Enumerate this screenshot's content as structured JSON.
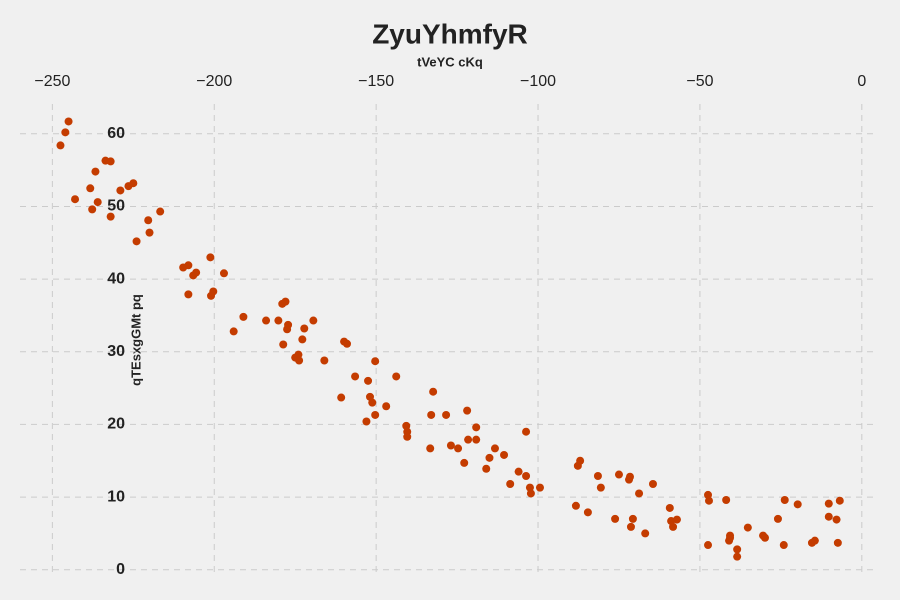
{
  "chart_data": {
    "type": "scatter",
    "title": "ZyuYhmfyR",
    "x_label": "tVeYC cKq",
    "y_label": "qTEsxgGMt pq",
    "color": "#c43c00",
    "grid": true,
    "xaxis_position": "top",
    "xlim": [
      -260,
      5
    ],
    "ylim": [
      -1,
      63
    ],
    "xticks": [
      {
        "value": -250,
        "label": "−250"
      },
      {
        "value": -200,
        "label": "−200"
      },
      {
        "value": -150,
        "label": "−150"
      },
      {
        "value": -100,
        "label": "−100"
      },
      {
        "value": -50,
        "label": "−50"
      },
      0
    ],
    "yticks": [
      0,
      10,
      20,
      30,
      40,
      50,
      60
    ],
    "x": [
      -247.5,
      -246,
      -245,
      -243,
      -238.3,
      -236.7,
      -237.7,
      -236,
      -233.6,
      -232,
      -232,
      -229,
      -226.5,
      -225,
      -224,
      -220.4,
      -220,
      -216.7,
      -209.6,
      -208,
      -208,
      -206.5,
      -205.6,
      -201.2,
      -201,
      -200.3,
      -197,
      -194,
      -191,
      -184,
      -180.2,
      -179,
      -178,
      -177.5,
      -177.2,
      -178.7,
      -175,
      -174,
      -173.8,
      -172.8,
      -172.2,
      -169.4,
      -166,
      -160.8,
      -159.9,
      -159,
      -156.5,
      -153,
      -152.5,
      -151.9,
      -151.2,
      -150.3,
      -150.3,
      -146.9,
      -143.8,
      -140.7,
      -140.4,
      -140.4,
      -133.3,
      -133,
      -132.4,
      -128.4,
      -126.9,
      -124.7,
      -122.8,
      -121.9,
      -121.6,
      -119.1,
      -119.1,
      -116,
      -115,
      -113.3,
      -110.5,
      -108.6,
      -106,
      -103.7,
      -103.7,
      -102.5,
      -102.2,
      -99.4,
      -88.3,
      -87.7,
      -87,
      -84.6,
      -81.5,
      -80.6,
      -76.2,
      -75,
      -71.9,
      -71.6,
      -71.3,
      -70.7,
      -68.8,
      -66.9,
      -64.5,
      -59.3,
      -58.9,
      -58.3,
      -57.1,
      -47.5,
      -47.5,
      -47.2,
      -41.9,
      -41,
      -40.7,
      -40.7,
      -38.5,
      -38.5,
      -35.2,
      -30.5,
      -29.9,
      -25.9,
      -24.1,
      -23.8,
      -19.8,
      -15.4,
      -14.5,
      -10.2,
      -10.2,
      -7.8,
      -7.4,
      -6.8
    ],
    "values": [
      58.4,
      60.2,
      61.7,
      51,
      52.5,
      54.8,
      49.6,
      50.6,
      56.3,
      56.2,
      48.6,
      52.2,
      52.8,
      53.2,
      45.2,
      48.1,
      46.4,
      49.3,
      41.6,
      41.9,
      37.9,
      40.5,
      40.9,
      43,
      37.7,
      38.3,
      40.8,
      32.8,
      34.8,
      34.3,
      34.3,
      36.6,
      36.9,
      33.1,
      33.7,
      31,
      29.2,
      29.6,
      28.8,
      31.7,
      33.2,
      34.3,
      28.8,
      23.7,
      31.4,
      31.1,
      26.6,
      20.4,
      26,
      23.8,
      23,
      21.3,
      28.7,
      22.5,
      26.6,
      19.8,
      19,
      18.3,
      16.7,
      21.3,
      24.5,
      21.3,
      17.1,
      16.7,
      14.7,
      21.9,
      17.9,
      17.9,
      19.6,
      13.9,
      15.4,
      16.7,
      15.8,
      11.8,
      13.5,
      12.9,
      19,
      11.3,
      10.5,
      11.3,
      8.8,
      14.3,
      15,
      7.9,
      12.9,
      11.3,
      7,
      13.1,
      12.4,
      12.8,
      5.9,
      7,
      10.5,
      5,
      11.8,
      8.5,
      6.7,
      5.9,
      6.9,
      3.4,
      10.3,
      9.5,
      9.6,
      4,
      4.4,
      4.7,
      2.8,
      1.8,
      5.8,
      4.7,
      4.4,
      7,
      3.4,
      9.6,
      9,
      3.7,
      4,
      9.1,
      7.3,
      6.9,
      3.7,
      9.5
    ]
  }
}
